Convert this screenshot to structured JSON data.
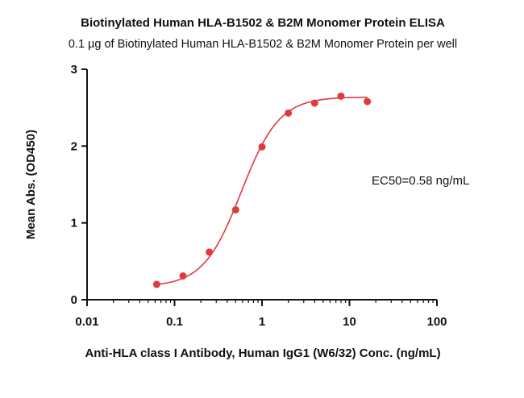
{
  "chart_data": {
    "type": "scatter",
    "title": "Biotinylated Human HLA-B1502 & B2M Monomer Protein ELISA",
    "subtitle": "0.1 µg of Biotinylated Human HLA-B1502 & B2M Monomer Protein per well",
    "xlabel": "Anti-HLA class I Antibody, Human IgG1 (W6/32) Conc. (ng/mL)",
    "ylabel": "Mean Abs. (OD450)",
    "xscale": "log",
    "xlim": [
      0.01,
      100
    ],
    "ylim": [
      0,
      3
    ],
    "xticks": [
      "0.01",
      "0.1",
      "1",
      "10",
      "100"
    ],
    "yticks": [
      "0",
      "1",
      "2",
      "3"
    ],
    "annotation": "EC50=0.58 ng/mL",
    "grid": false,
    "color": "#e0393e",
    "series": [
      {
        "x": [
          0.0625,
          0.125,
          0.25,
          0.5,
          1,
          2,
          4,
          8,
          16
        ],
        "y": [
          0.2,
          0.31,
          0.62,
          1.17,
          1.99,
          2.43,
          2.56,
          2.65,
          2.58
        ]
      }
    ],
    "fit": {
      "model": "4PL",
      "bottom": 0.17,
      "top": 2.64,
      "ec50": 0.58,
      "hill": 2.0
    }
  }
}
